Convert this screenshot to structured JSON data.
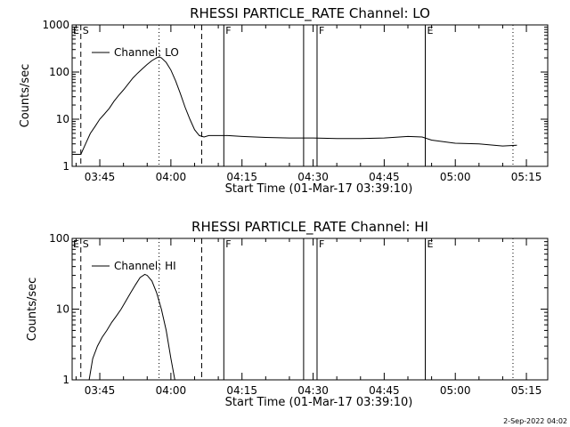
{
  "footer_date": "2-Sep-2022 04:02",
  "chart_data": [
    {
      "type": "line",
      "title": "RHESSI PARTICLE_RATE Channel: LO",
      "xlabel": "Start Time (01-Mar-17 03:39:10)",
      "ylabel": "Counts/sec",
      "y_scale": "log",
      "ylim": [
        1,
        1000
      ],
      "xlim": [
        "03:39:10",
        "05:19:30"
      ],
      "x_ticks": [
        "03:45",
        "04:00",
        "04:15",
        "04:30",
        "04:45",
        "05:00",
        "05:15"
      ],
      "y_ticks": [
        "1",
        "10",
        "100",
        "1000"
      ],
      "legend": {
        "entries": [
          "Channel: LO"
        ],
        "placement": "top-left"
      },
      "series": [
        {
          "name": "Channel: LO",
          "x": [
            "03:39:10",
            "03:41:00",
            "03:42:00",
            "03:43:00",
            "03:44:00",
            "03:45:00",
            "03:46:00",
            "03:47:00",
            "03:48:00",
            "03:49:00",
            "03:50:00",
            "03:51:00",
            "03:52:00",
            "03:53:00",
            "03:54:00",
            "03:55:00",
            "03:56:00",
            "03:57:00",
            "03:57:30",
            "03:58:00",
            "03:59:00",
            "04:00:00",
            "04:01:00",
            "04:02:00",
            "04:03:00",
            "04:04:00",
            "04:05:00",
            "04:06:00",
            "04:07:00",
            "04:08:00",
            "04:10:00",
            "04:12:00",
            "04:15:00",
            "04:20:00",
            "04:25:00",
            "04:30:00",
            "04:35:00",
            "04:40:00",
            "04:45:00",
            "04:50:00",
            "04:53:00",
            "04:55:00",
            "05:00:00",
            "05:05:00",
            "05:10:00",
            "05:13:00"
          ],
          "values": [
            1.8,
            1.8,
            3,
            5,
            7,
            10,
            13,
            17,
            24,
            32,
            42,
            56,
            75,
            95,
            118,
            145,
            175,
            200,
            210,
            200,
            160,
            110,
            65,
            35,
            18,
            10,
            6,
            4.5,
            4.2,
            4.5,
            4.5,
            4.5,
            4.3,
            4.1,
            4.0,
            4.0,
            3.9,
            3.9,
            4.0,
            4.3,
            4.2,
            3.6,
            3.1,
            3.0,
            2.7,
            2.8
          ]
        }
      ],
      "events": [
        {
          "label": "S",
          "time": "03:41:00",
          "style": "dashed"
        },
        {
          "label": "",
          "time": "03:57:30",
          "style": "dotted"
        },
        {
          "label": "",
          "time": "04:06:30",
          "style": "dashed"
        },
        {
          "label": "F",
          "time": "04:11:10",
          "style": "solid"
        },
        {
          "label": "",
          "time": "04:28:00",
          "style": "solid"
        },
        {
          "label": "F",
          "time": "04:30:50",
          "style": "solid"
        },
        {
          "label": "E",
          "time": "04:53:40",
          "style": "solid"
        },
        {
          "label": "",
          "time": "05:12:10",
          "style": "dotted"
        }
      ],
      "e_label_start": "E"
    },
    {
      "type": "line",
      "title": "RHESSI PARTICLE_RATE Channel: HI",
      "xlabel": "Start Time (01-Mar-17 03:39:10)",
      "ylabel": "Counts/sec",
      "y_scale": "log",
      "ylim": [
        1,
        100
      ],
      "xlim": [
        "03:39:10",
        "05:19:30"
      ],
      "x_ticks": [
        "03:45",
        "04:00",
        "04:15",
        "04:30",
        "04:45",
        "05:00",
        "05:15"
      ],
      "y_ticks": [
        "1",
        "10",
        "100"
      ],
      "legend": {
        "entries": [
          "Channel: HI"
        ],
        "placement": "top-left"
      },
      "series": [
        {
          "name": "Channel: HI",
          "x": [
            "03:42:45",
            "03:43:30",
            "03:44:30",
            "03:45:30",
            "03:46:30",
            "03:47:30",
            "03:48:30",
            "03:49:30",
            "03:50:30",
            "03:51:30",
            "03:52:30",
            "03:53:30",
            "03:54:30",
            "03:55:00",
            "03:56:00",
            "03:57:00",
            "03:58:00",
            "03:59:00",
            "04:00:00",
            "04:00:50"
          ],
          "values": [
            1,
            2,
            3,
            4,
            5,
            6.5,
            8,
            10,
            13,
            17,
            22,
            28,
            31,
            30,
            25,
            17,
            10,
            5,
            2,
            1
          ]
        }
      ],
      "events": [
        {
          "label": "S",
          "time": "03:41:00",
          "style": "dashed"
        },
        {
          "label": "",
          "time": "03:57:30",
          "style": "dotted"
        },
        {
          "label": "",
          "time": "04:06:30",
          "style": "dashed"
        },
        {
          "label": "F",
          "time": "04:11:10",
          "style": "solid"
        },
        {
          "label": "",
          "time": "04:28:00",
          "style": "solid"
        },
        {
          "label": "F",
          "time": "04:30:50",
          "style": "solid"
        },
        {
          "label": "E",
          "time": "04:53:40",
          "style": "solid"
        },
        {
          "label": "",
          "time": "05:12:10",
          "style": "dotted"
        }
      ],
      "e_label_start": "E"
    }
  ]
}
